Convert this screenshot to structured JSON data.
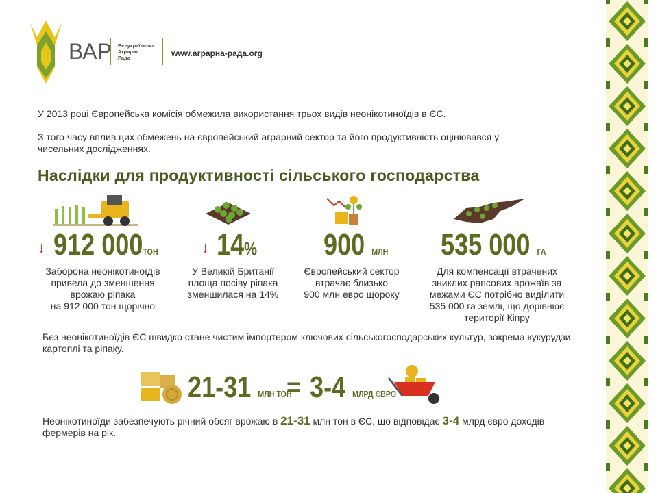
{
  "header": {
    "logo_text": "ВАР",
    "logo_subtitle": [
      "Всеукраїнська",
      "Аграрна",
      "Рада"
    ],
    "url": "www.аграрна-рада.org"
  },
  "intro": [
    "У 2013 році Європейська комісія обмежила використання трьох видів неонікотиноїдів в ЄС.",
    "З того часу вплив цих обмежень на європейський аграрний сектор та його продуктивність оцінювався у чисельних дослідженнях."
  ],
  "section_title": "Наслідки для продуктивності сільського господарства",
  "stats": [
    {
      "number": "912 000",
      "unit": "ТОН",
      "description": [
        "Заборона неонікотиноїдів",
        "привела до зменшення",
        "врожаю ріпака",
        "на 912 000 тон щорічно"
      ]
    },
    {
      "number": "14",
      "unit": "%",
      "description": [
        "У Великій Британії",
        "площа посіву ріпака",
        "зменшилася на 14%"
      ]
    },
    {
      "number": "900",
      "unit": "МЛН",
      "description": [
        "Європейський сектор",
        "втрачає близько",
        "900 млн евро щороку"
      ]
    },
    {
      "number": "535 000",
      "unit": "ГА",
      "description": [
        "Для компенсації втрачених",
        "зниклих рапсових врожаїв за",
        "межами ЄС потрібно виділити",
        "535 000 га землі, що дорівнює",
        "території Кіпру"
      ]
    }
  ],
  "importer_text": "Без неонікотиноїдів ЄС швидко стане чистим імпортером ключових сільськогосподарських культур, зокрема кукурудзи, картоплі та ріпаку.",
  "equation": {
    "left_number": "21-31",
    "left_unit": "МЛН ТОН",
    "sign": "=",
    "right_number": "3-4",
    "right_unit": "МЛРД ЄВРО"
  },
  "summary": {
    "part1": "Неонікотиноїди забезпечують річний обсяг врожаю в ",
    "highlight1": "21-31",
    "part2": " млн тон в ЄС, що відповідає ",
    "highlight2": "3-4",
    "part3": " млрд євро доходів фермерів на рік."
  }
}
